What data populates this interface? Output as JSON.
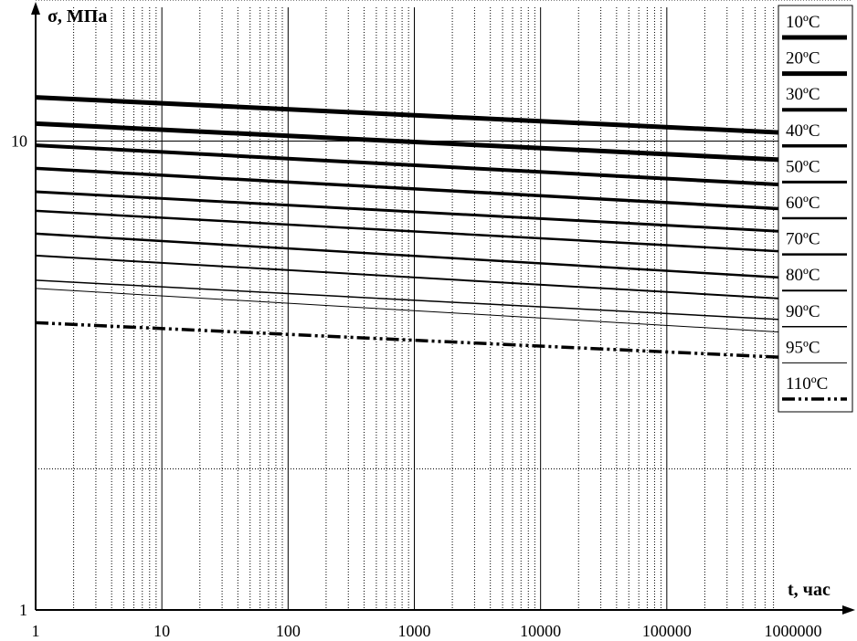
{
  "chart_data": {
    "type": "line",
    "title": "",
    "ylabel": "σ, МПа",
    "xlabel": "t, час",
    "x_scale": "log",
    "y_scale": "log",
    "xlim": [
      1,
      1000000
    ],
    "ylim": [
      1,
      20
    ],
    "grid": true,
    "legend_position": "top-right",
    "x_ticks": [
      "1",
      "10",
      "100",
      "1000",
      "10000",
      "100000",
      "1000000"
    ],
    "y_ticks": [
      "1",
      "10"
    ],
    "series": [
      {
        "name": "10ºC",
        "x": [
          1,
          1000000
        ],
        "y": [
          12.4,
          10.4
        ],
        "style": "solid",
        "width": 5
      },
      {
        "name": "20ºC",
        "x": [
          1,
          1000000
        ],
        "y": [
          10.9,
          9.1
        ],
        "style": "solid",
        "width": 5
      },
      {
        "name": "30ºC",
        "x": [
          1,
          1000000
        ],
        "y": [
          9.8,
          8.05
        ],
        "style": "solid",
        "width": 4
      },
      {
        "name": "40ºC",
        "x": [
          1,
          1000000
        ],
        "y": [
          8.75,
          7.15
        ],
        "style": "solid",
        "width": 3.5
      },
      {
        "name": "50ºC",
        "x": [
          1,
          1000000
        ],
        "y": [
          7.8,
          6.4
        ],
        "style": "solid",
        "width": 3
      },
      {
        "name": "60ºC",
        "x": [
          1,
          1000000
        ],
        "y": [
          7.1,
          5.8
        ],
        "style": "solid",
        "width": 2.5
      },
      {
        "name": "70ºC",
        "x": [
          1,
          1000000
        ],
        "y": [
          6.35,
          5.1
        ],
        "style": "solid",
        "width": 2.5
      },
      {
        "name": "80ºC",
        "x": [
          1,
          1000000
        ],
        "y": [
          5.7,
          4.6
        ],
        "style": "solid",
        "width": 2
      },
      {
        "name": "90ºC",
        "x": [
          1,
          1000000
        ],
        "y": [
          5.05,
          4.15
        ],
        "style": "solid",
        "width": 1.5
      },
      {
        "name": "95ºC",
        "x": [
          1,
          1000000
        ],
        "y": [
          4.85,
          3.9
        ],
        "style": "solid",
        "width": 1
      },
      {
        "name": "110ºC",
        "x": [
          1,
          1000000
        ],
        "y": [
          4.1,
          3.45
        ],
        "style": "dash-dot-dot",
        "width": 3.5
      }
    ]
  },
  "colors": {
    "line": "#000000",
    "grid": "#000000",
    "background": "#ffffff"
  }
}
